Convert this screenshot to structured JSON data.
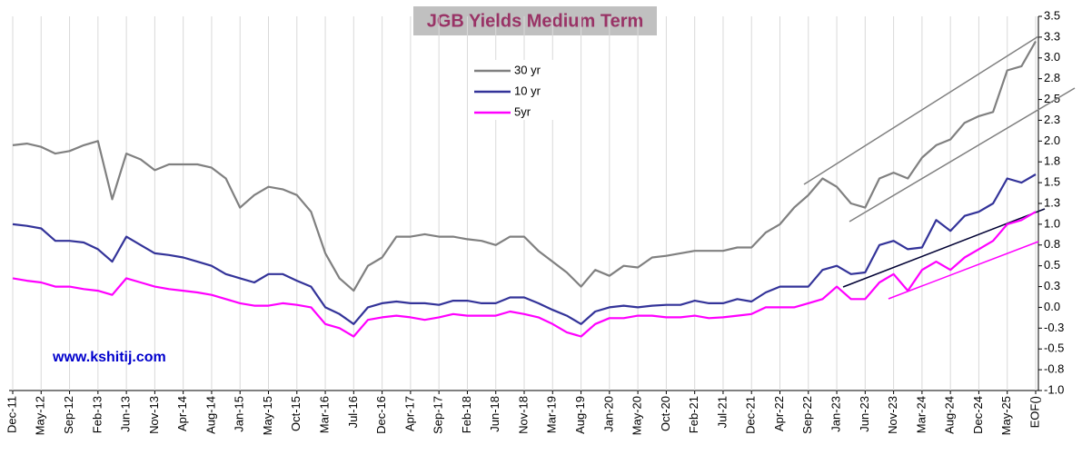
{
  "chart_data": {
    "type": "line",
    "title": "JGB Yields Medium Term",
    "watermark": "www.kshitij.com",
    "categories": [
      "Dec-11",
      null,
      "May-12",
      null,
      "Sep-12",
      null,
      "Feb-13",
      null,
      "Jun-13",
      null,
      "Nov-13",
      null,
      "Apr-14",
      null,
      "Aug-14",
      null,
      "Jan-15",
      null,
      "May-15",
      null,
      "Oct-15",
      null,
      "Mar-16",
      null,
      "Jul-16",
      null,
      "Dec-16",
      null,
      "Apr-17",
      null,
      "Sep-17",
      null,
      "Feb-18",
      null,
      "Jun-18",
      null,
      "Nov-18",
      null,
      "Mar-19",
      null,
      "Aug-19",
      null,
      "Jan-20",
      null,
      "May-20",
      null,
      "Oct-20",
      null,
      "Feb-21",
      null,
      "Jul-21",
      null,
      "Dec-21",
      null,
      "Apr-22",
      null,
      "Sep-22",
      null,
      "Jan-23",
      null,
      "Jun-23",
      null,
      "Nov-23",
      null,
      "Mar-24",
      null,
      "Aug-24",
      null,
      "Dec-24",
      null,
      "May-25",
      null,
      "EOF()"
    ],
    "series": [
      {
        "name": "30 yr",
        "color": "#808080",
        "values": [
          1.95,
          1.97,
          1.93,
          1.85,
          1.88,
          1.95,
          2.0,
          1.3,
          1.85,
          1.78,
          1.65,
          1.72,
          1.72,
          1.72,
          1.68,
          1.55,
          1.2,
          1.35,
          1.45,
          1.42,
          1.35,
          1.15,
          0.65,
          0.35,
          0.2,
          0.5,
          0.6,
          0.85,
          0.85,
          0.88,
          0.85,
          0.85,
          0.82,
          0.8,
          0.75,
          0.85,
          0.85,
          0.68,
          0.55,
          0.42,
          0.25,
          0.45,
          0.38,
          0.5,
          0.48,
          0.6,
          0.62,
          0.65,
          0.68,
          0.68,
          0.68,
          0.72,
          0.72,
          0.9,
          1.0,
          1.2,
          1.35,
          1.55,
          1.45,
          1.25,
          1.2,
          1.55,
          1.62,
          1.55,
          1.8,
          1.95,
          2.02,
          2.22,
          2.3,
          2.35,
          2.85,
          2.9,
          3.2
        ]
      },
      {
        "name": "10 yr",
        "color": "#333399",
        "values": [
          1.0,
          0.98,
          0.95,
          0.8,
          0.8,
          0.78,
          0.7,
          0.55,
          0.85,
          0.75,
          0.65,
          0.63,
          0.6,
          0.55,
          0.5,
          0.4,
          0.35,
          0.3,
          0.4,
          0.4,
          0.32,
          0.25,
          0.0,
          -0.08,
          -0.2,
          0.0,
          0.05,
          0.07,
          0.05,
          0.05,
          0.03,
          0.08,
          0.08,
          0.05,
          0.05,
          0.12,
          0.12,
          0.05,
          -0.03,
          -0.1,
          -0.2,
          -0.05,
          0.0,
          0.02,
          0.0,
          0.02,
          0.03,
          0.03,
          0.08,
          0.05,
          0.05,
          0.1,
          0.07,
          0.18,
          0.25,
          0.25,
          0.25,
          0.45,
          0.5,
          0.4,
          0.42,
          0.75,
          0.8,
          0.7,
          0.72,
          1.05,
          0.92,
          1.1,
          1.15,
          1.25,
          1.55,
          1.5,
          1.6
        ]
      },
      {
        "name": "5yr",
        "color": "#ff00ff",
        "values": [
          0.35,
          0.32,
          0.3,
          0.25,
          0.25,
          0.22,
          0.2,
          0.15,
          0.35,
          0.3,
          0.25,
          0.22,
          0.2,
          0.18,
          0.15,
          0.1,
          0.05,
          0.02,
          0.02,
          0.05,
          0.03,
          0.0,
          -0.2,
          -0.25,
          -0.35,
          -0.15,
          -0.12,
          -0.1,
          -0.12,
          -0.15,
          -0.12,
          -0.08,
          -0.1,
          -0.1,
          -0.1,
          -0.05,
          -0.08,
          -0.12,
          -0.2,
          -0.3,
          -0.35,
          -0.2,
          -0.13,
          -0.13,
          -0.1,
          -0.1,
          -0.12,
          -0.12,
          -0.1,
          -0.13,
          -0.12,
          -0.1,
          -0.08,
          0.0,
          0.0,
          0.0,
          0.05,
          0.1,
          0.25,
          0.1,
          0.1,
          0.3,
          0.4,
          0.2,
          0.45,
          0.55,
          0.45,
          0.6,
          0.7,
          0.8,
          1.0,
          1.05,
          1.15
        ]
      }
    ],
    "ylim": [
      -1.0,
      3.5
    ],
    "yticks": [
      3.5,
      {
        "value": 3.25,
        "label": "3.3"
      },
      {
        "value": 3,
        "label": "3.0"
      },
      {
        "value": 2.75,
        "label": "2.8"
      },
      2.5,
      {
        "value": 2.25,
        "label": "2.3"
      },
      {
        "value": 2,
        "label": "2.0"
      },
      {
        "value": 1.75,
        "label": "1.8"
      },
      1.5,
      {
        "value": 1.25,
        "label": "1.3"
      },
      {
        "value": 1,
        "label": "1.0"
      },
      {
        "value": 0.75,
        "label": "0.8"
      },
      0.5,
      {
        "value": 0.25,
        "label": "0.3"
      },
      {
        "value": 0,
        "label": "0.0"
      },
      {
        "value": -0.25,
        "label": "-0.3"
      },
      -0.5,
      {
        "value": -0.75,
        "label": "-0.8"
      },
      {
        "value": -1,
        "label": "-1.0"
      }
    ],
    "grid": "x",
    "y_axis_side": "right"
  }
}
